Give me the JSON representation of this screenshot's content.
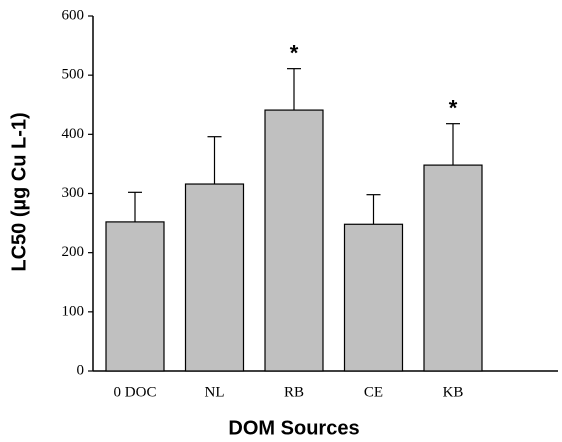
{
  "chart_data": {
    "type": "bar",
    "categories": [
      "0 DOC",
      "NL",
      "RB",
      "CE",
      "KB"
    ],
    "values": [
      252,
      316,
      441,
      248,
      348
    ],
    "errors": [
      50,
      80,
      70,
      50,
      70
    ],
    "significance": [
      null,
      null,
      "*",
      null,
      "*"
    ],
    "color": "#c0c0c0",
    "xlabel": "DOM Sources",
    "ylabel": "LC50 (µg Cu L-1)",
    "ylim": [
      0,
      600
    ],
    "yticks": [
      0,
      100,
      200,
      300,
      400,
      500,
      600
    ]
  }
}
